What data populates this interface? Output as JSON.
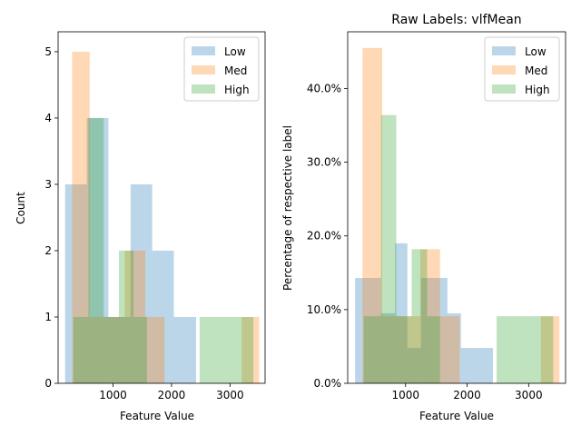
{
  "colors": {
    "Low": "#1f77b4",
    "Med": "#ff7f0e",
    "High": "#2ca02c"
  },
  "chart_data": [
    {
      "type": "histogram",
      "title": "",
      "xlabel": "Feature Value",
      "ylabel": "Count",
      "xlim": [
        60,
        3600
      ],
      "ylim": [
        0,
        5.3
      ],
      "xticks": [
        1000,
        2000,
        3000
      ],
      "xtick_labels": [
        "1000",
        "2000",
        "3000"
      ],
      "yticks": [
        0,
        1,
        2,
        3,
        4,
        5
      ],
      "ytick_labels": [
        "0",
        "1",
        "2",
        "3",
        "4",
        "5"
      ],
      "legend": {
        "position": "top-right",
        "entries": [
          "Low",
          "Med",
          "High"
        ]
      },
      "series": [
        {
          "name": "Low",
          "color": "#1f77b4",
          "bins": [
            [
              180,
              550,
              3
            ],
            [
              550,
              920,
              4
            ],
            [
              920,
              1300,
              1
            ],
            [
              1300,
              1670,
              3
            ],
            [
              1670,
              2040,
              2
            ],
            [
              2040,
              2420,
              1
            ]
          ]
        },
        {
          "name": "Med",
          "color": "#ff7f0e",
          "bins": [
            [
              300,
              600,
              5
            ],
            [
              600,
              900,
              1
            ],
            [
              900,
              1200,
              1
            ],
            [
              1200,
              1550,
              2
            ],
            [
              1550,
              1880,
              1
            ],
            [
              3200,
              3500,
              1
            ]
          ]
        },
        {
          "name": "High",
          "color": "#2ca02c",
          "bins": [
            [
              320,
              580,
              1
            ],
            [
              580,
              840,
              4
            ],
            [
              840,
              1100,
              1
            ],
            [
              1100,
              1350,
              2
            ],
            [
              1350,
              1580,
              1
            ],
            [
              2480,
              3250,
              1
            ],
            [
              3250,
              3400,
              1
            ]
          ]
        }
      ]
    },
    {
      "type": "histogram",
      "title": "Raw Labels: vlfMean",
      "xlabel": "Feature Value",
      "ylabel": "Percentage of respective label",
      "xlim": [
        60,
        3600
      ],
      "ylim": [
        0,
        0.477
      ],
      "xticks": [
        1000,
        2000,
        3000
      ],
      "xtick_labels": [
        "1000",
        "2000",
        "3000"
      ],
      "yticks": [
        0,
        0.1,
        0.2,
        0.3,
        0.4
      ],
      "ytick_labels": [
        "0.0%",
        "10.0%",
        "20.0%",
        "30.0%",
        "40.0%"
      ],
      "legend": {
        "position": "top-right",
        "entries": [
          "Low",
          "Med",
          "High"
        ]
      },
      "series": [
        {
          "name": "Low",
          "color": "#1f77b4",
          "bins": [
            [
              180,
              600,
              0.143
            ],
            [
              600,
              830,
              0.095
            ],
            [
              830,
              1030,
              0.19
            ],
            [
              1030,
              1250,
              0.048
            ],
            [
              1250,
              1680,
              0.143
            ],
            [
              1680,
              1900,
              0.095
            ],
            [
              1900,
              2420,
              0.048
            ]
          ]
        },
        {
          "name": "Med",
          "color": "#ff7f0e",
          "bins": [
            [
              300,
              620,
              0.455
            ],
            [
              620,
              880,
              0.091
            ],
            [
              880,
              1240,
              0.091
            ],
            [
              1240,
              1560,
              0.182
            ],
            [
              1560,
              1880,
              0.091
            ],
            [
              3200,
              3500,
              0.091
            ]
          ]
        },
        {
          "name": "High",
          "color": "#2ca02c",
          "bins": [
            [
              320,
              600,
              0.091
            ],
            [
              600,
              850,
              0.364
            ],
            [
              850,
              1100,
              0.091
            ],
            [
              1100,
              1350,
              0.182
            ],
            [
              1350,
              1560,
              0.091
            ],
            [
              2480,
              3250,
              0.091
            ],
            [
              3250,
              3400,
              0.091
            ]
          ]
        }
      ]
    }
  ]
}
